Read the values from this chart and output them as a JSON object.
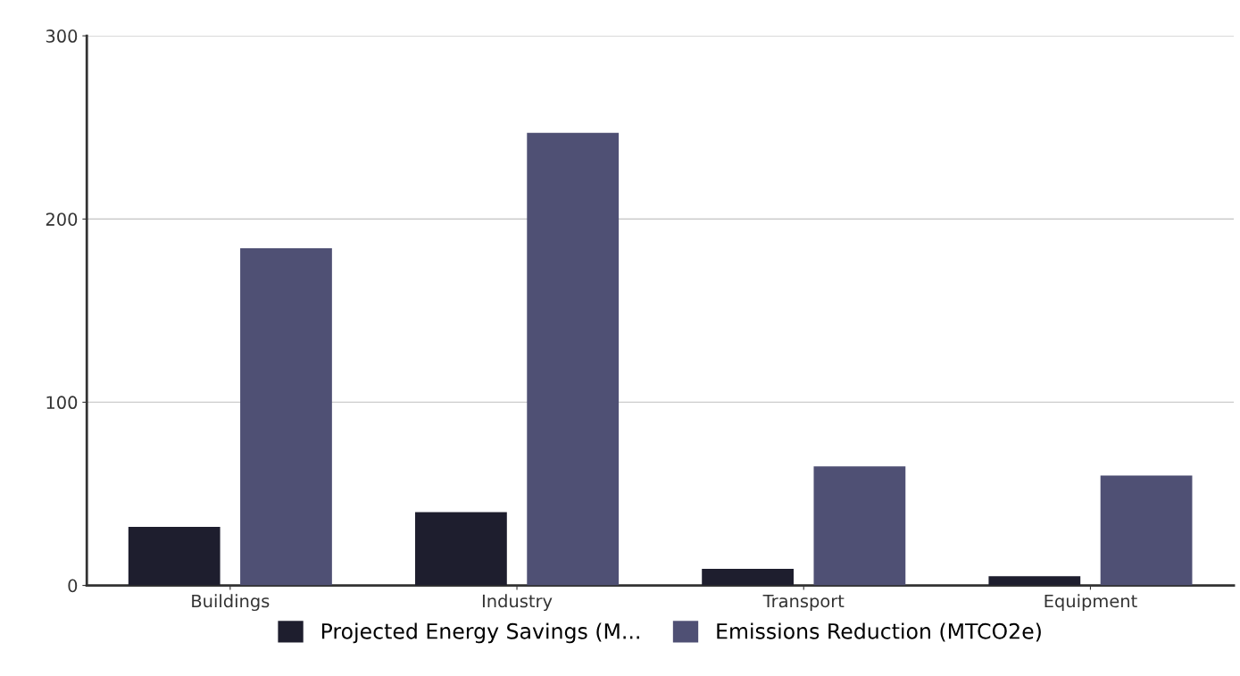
{
  "chart_data": {
    "type": "bar",
    "categories": [
      "Buildings",
      "Industry",
      "Transport",
      "Equipment"
    ],
    "series": [
      {
        "name": "Projected Energy Savings (M...",
        "color": "#1e1e2e",
        "values": [
          32,
          40,
          9,
          5
        ]
      },
      {
        "name": "Emissions Reduction (MTCO2e)",
        "color": "#4f5074",
        "values": [
          184,
          247,
          65,
          60
        ]
      }
    ],
    "ylim": [
      0,
      300
    ],
    "yticks": [
      0,
      100,
      200,
      300
    ],
    "grid": "y",
    "legend": "bottom"
  }
}
